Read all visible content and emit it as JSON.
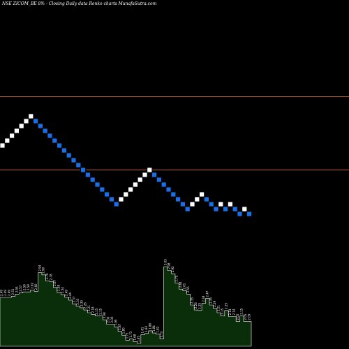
{
  "colors": {
    "background": "#000000",
    "up_brick": "#ffffff",
    "down_brick": "#1a6fe6",
    "brick_border": "#000000",
    "level_line": "#b4602a",
    "volume_fill": "#0a2e0a",
    "volume_stroke": "#ffffff",
    "label_text": "#ffffff"
  },
  "chart_data": {
    "type": "renko",
    "title": "NSE ZICOM_BE 8% - Closing Daily data Renko charts MunafaSutra.com",
    "grid": false,
    "horizontal_levels": [
      2.75,
      2.45
    ],
    "bricks": [
      {
        "dir": "up",
        "price": 2.55
      },
      {
        "dir": "up",
        "price": 2.57
      },
      {
        "dir": "up",
        "price": 2.59
      },
      {
        "dir": "up",
        "price": 2.61
      },
      {
        "dir": "up",
        "price": 2.63
      },
      {
        "dir": "up",
        "price": 2.65
      },
      {
        "dir": "up",
        "price": 2.67
      },
      {
        "dir": "down",
        "price": 2.65
      },
      {
        "dir": "down",
        "price": 2.63
      },
      {
        "dir": "down",
        "price": 2.61
      },
      {
        "dir": "down",
        "price": 2.59
      },
      {
        "dir": "down",
        "price": 2.57
      },
      {
        "dir": "down",
        "price": 2.55
      },
      {
        "dir": "down",
        "price": 2.53
      },
      {
        "dir": "down",
        "price": 2.51
      },
      {
        "dir": "down",
        "price": 2.49
      },
      {
        "dir": "down",
        "price": 2.47
      },
      {
        "dir": "down",
        "price": 2.45
      },
      {
        "dir": "down",
        "price": 2.43
      },
      {
        "dir": "down",
        "price": 2.41
      },
      {
        "dir": "down",
        "price": 2.39
      },
      {
        "dir": "down",
        "price": 2.37
      },
      {
        "dir": "down",
        "price": 2.35
      },
      {
        "dir": "down",
        "price": 2.33
      },
      {
        "dir": "down",
        "price": 2.31
      },
      {
        "dir": "up",
        "price": 2.33
      },
      {
        "dir": "up",
        "price": 2.35
      },
      {
        "dir": "up",
        "price": 2.37
      },
      {
        "dir": "up",
        "price": 2.39
      },
      {
        "dir": "up",
        "price": 2.41
      },
      {
        "dir": "up",
        "price": 2.43
      },
      {
        "dir": "up",
        "price": 2.45
      },
      {
        "dir": "down",
        "price": 2.43
      },
      {
        "dir": "down",
        "price": 2.41
      },
      {
        "dir": "down",
        "price": 2.39
      },
      {
        "dir": "down",
        "price": 2.37
      },
      {
        "dir": "down",
        "price": 2.35
      },
      {
        "dir": "down",
        "price": 2.33
      },
      {
        "dir": "down",
        "price": 2.31
      },
      {
        "dir": "down",
        "price": 2.29
      },
      {
        "dir": "up",
        "price": 2.31
      },
      {
        "dir": "up",
        "price": 2.33
      },
      {
        "dir": "up",
        "price": 2.35
      },
      {
        "dir": "down",
        "price": 2.33
      },
      {
        "dir": "down",
        "price": 2.31
      },
      {
        "dir": "down",
        "price": 2.29
      },
      {
        "dir": "up",
        "price": 2.31
      },
      {
        "dir": "down",
        "price": 2.29
      },
      {
        "dir": "up",
        "price": 2.31
      },
      {
        "dir": "down",
        "price": 2.29
      },
      {
        "dir": "down",
        "price": 2.27
      },
      {
        "dir": "up",
        "price": 2.29
      },
      {
        "dir": "down",
        "price": 2.27
      }
    ],
    "volume_labels": [
      "2.49",
      "2.49",
      "2.49",
      "2.51",
      "2.55",
      "2.57",
      "2.59",
      "2.59",
      "2.62",
      "2.60",
      "2.94",
      "2.90",
      "2.79",
      "2.78",
      "2.67",
      "2.58",
      "2.54",
      "2.49",
      "2.44",
      "2.37",
      "2.33",
      "2.30",
      "2.26",
      "2.21",
      "2.18",
      "2.15",
      "2.15",
      "2.08",
      "2.00",
      "2.00",
      "1.95",
      "1.87",
      "1.80",
      "1.71",
      "1.73",
      "1.68",
      "1.65",
      "1.81",
      "1.83",
      "1.88",
      "1.84",
      "1.82",
      "1.73",
      "3.05",
      "2.98",
      "2.92",
      "2.75",
      "2.64",
      "2.61",
      "2.55",
      "2.35",
      "2.26",
      "2.25",
      "2.38",
      "2.47",
      "2.35",
      "2.29",
      "2.21",
      "2.15",
      "2.25",
      "2.14",
      "2.14",
      "2.05",
      "2.15",
      "2.05",
      "2.05"
    ],
    "volume_values": [
      2.49,
      2.49,
      2.49,
      2.51,
      2.55,
      2.57,
      2.59,
      2.59,
      2.62,
      2.6,
      2.94,
      2.9,
      2.79,
      2.78,
      2.67,
      2.58,
      2.54,
      2.49,
      2.44,
      2.37,
      2.33,
      2.3,
      2.26,
      2.21,
      2.18,
      2.15,
      2.15,
      2.08,
      2.0,
      2.0,
      1.95,
      1.87,
      1.8,
      1.71,
      1.73,
      1.68,
      1.65,
      1.81,
      1.83,
      1.88,
      1.84,
      1.82,
      1.73,
      3.05,
      2.98,
      2.92,
      2.75,
      2.64,
      2.61,
      2.55,
      2.35,
      2.26,
      2.25,
      2.38,
      2.47,
      2.35,
      2.29,
      2.21,
      2.15,
      2.25,
      2.14,
      2.14,
      2.05,
      2.15,
      2.05,
      2.05
    ]
  }
}
